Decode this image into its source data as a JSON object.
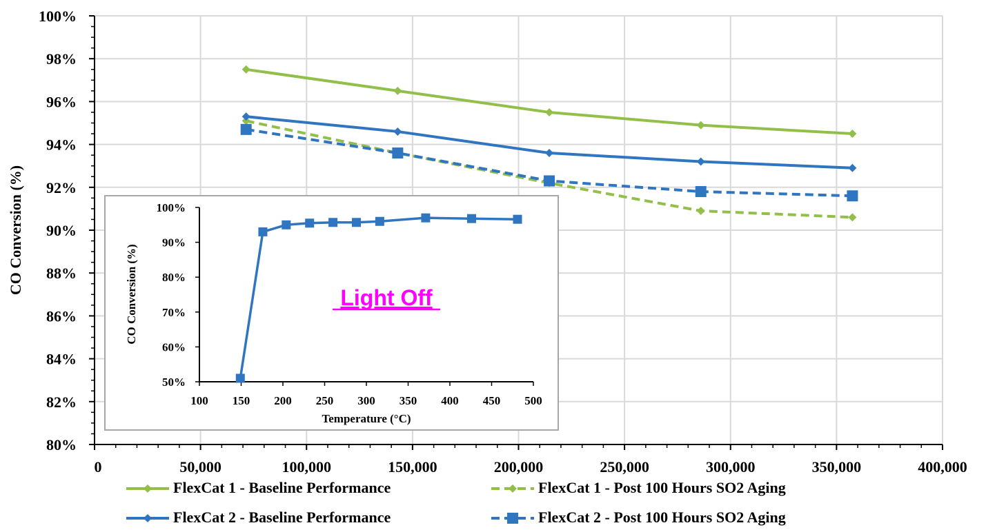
{
  "chart_data": [
    {
      "type": "line",
      "title": "",
      "xlabel": "",
      "ylabel": "CO Conversion (%)",
      "xlim": [
        0,
        400000
      ],
      "ylim": [
        80,
        100
      ],
      "x_ticks": [
        0,
        50000,
        100000,
        150000,
        200000,
        250000,
        300000,
        350000,
        400000
      ],
      "x_tick_labels": [
        "0",
        "50,000",
        "100,000",
        "150,000",
        "200,000",
        "250,000",
        "300,000",
        "350,000",
        "400,000"
      ],
      "y_ticks": [
        80,
        82,
        84,
        86,
        88,
        90,
        92,
        94,
        96,
        98,
        100
      ],
      "y_tick_labels": [
        "80%",
        "82%",
        "84%",
        "86%",
        "88%",
        "90%",
        "92%",
        "94%",
        "96%",
        "98%",
        "100%"
      ],
      "grid": true,
      "legend_position": "bottom",
      "x": [
        71500,
        143000,
        214500,
        286000,
        357500
      ],
      "series": [
        {
          "name": "FlexCat 1 - Baseline Performance",
          "values": [
            97.5,
            96.5,
            95.5,
            94.9,
            94.5
          ],
          "color": "#92bf4a",
          "style": "solid",
          "marker": "diamond"
        },
        {
          "name": "FlexCat 1 - Post 100 Hours SO2 Aging",
          "values": [
            95.1,
            93.6,
            92.2,
            90.9,
            90.6
          ],
          "color": "#92bf4a",
          "style": "dashed",
          "marker": "diamond"
        },
        {
          "name": "FlexCat 2 - Baseline Performance",
          "values": [
            95.3,
            94.6,
            93.6,
            93.2,
            92.9
          ],
          "color": "#2f75c0",
          "style": "solid",
          "marker": "diamond"
        },
        {
          "name": "FlexCat 2 - Post 100 Hours SO2 Aging",
          "values": [
            94.7,
            93.6,
            92.3,
            91.8,
            91.6
          ],
          "color": "#2f75c0",
          "style": "dashed",
          "marker": "square"
        }
      ]
    },
    {
      "type": "line",
      "title": "",
      "xlabel": "Temperature (°C)",
      "ylabel": "CO Conversion (%)",
      "xlim": [
        100,
        500
      ],
      "ylim": [
        50,
        100
      ],
      "x_ticks": [
        100,
        150,
        200,
        250,
        300,
        350,
        400,
        450,
        500
      ],
      "x_tick_labels": [
        "100",
        "150",
        "200",
        "250",
        "300",
        "350",
        "400",
        "450",
        "500"
      ],
      "y_ticks": [
        50,
        60,
        70,
        80,
        90,
        100
      ],
      "y_tick_labels": [
        "50%",
        "60%",
        "70%",
        "80%",
        "90%",
        "100%"
      ],
      "grid": false,
      "annotation": "Light Off",
      "annotation_color": "#ff00ff",
      "series": [
        {
          "name": "",
          "x": [
            149,
            176,
            204,
            232,
            260,
            288,
            316,
            371,
            426,
            481
          ],
          "values": [
            51,
            93,
            95,
            95.5,
            95.7,
            95.7,
            96,
            97,
            96.8,
            96.6
          ],
          "color": "#2f75c0",
          "style": "solid",
          "marker": "square"
        }
      ]
    }
  ]
}
